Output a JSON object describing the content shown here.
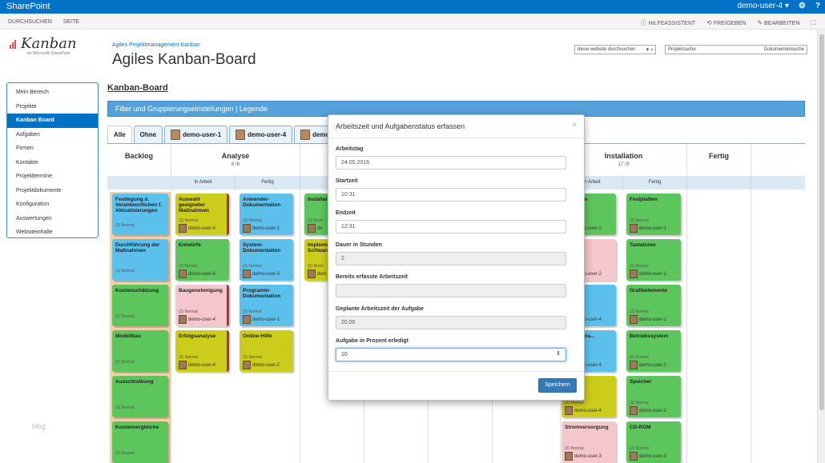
{
  "suitebar": {
    "brand": "SharePoint",
    "user": "demo-user-4 ▾",
    "gear": "⚙",
    "help": "?"
  },
  "ribbon": {
    "browse": "DURCHSUCHEN",
    "page": "SEITE",
    "help_assistant": "HILFEASSISTENT",
    "share": "FREIGEBEN",
    "edit": "BEARBEITEN"
  },
  "site": {
    "subtitle": "Agiles Projektmanagement Kanban",
    "title": "Agiles Kanban-Board",
    "logo_text": "Kanban",
    "logo_sub": "for Microsoft SharePoint"
  },
  "search": {
    "site_search": "diese website durchsuchen",
    "project_search": "Projektsuche",
    "doc_search": "Dokumentensuche"
  },
  "leftnav": {
    "items": [
      "Mein Bereich",
      "Projekte",
      "Kanban Board",
      "Aufgaben",
      "Firmen",
      "Kontakte",
      "Projekttermine",
      "Projektdokumente",
      "Konfiguration",
      "Auswertungen",
      "Websiteinhalte"
    ],
    "active": "Kanban Board"
  },
  "blog_watermark": "blog",
  "board": {
    "heading": "Kanban-Board",
    "filterbar": "Filter und Gruppierungseinstellungen | Legende",
    "tabs": [
      "Alle",
      "Ohne",
      "demo-user-1",
      "demo-user-4",
      "demo-user-"
    ],
    "columns": {
      "backlog": "Backlog",
      "analyse": {
        "title": "Analyse",
        "count": "8 /8",
        "sub": [
          "In Arbeit",
          "Fertig"
        ]
      },
      "entwicklung_sub": "In",
      "installation": {
        "title": "Installation",
        "count": "17 /3",
        "sub": [
          "In Arbeit",
          "Fertig"
        ]
      },
      "fertig": "Fertig"
    },
    "backlog_cards": [
      {
        "title": "Festlegung d. Verantwortlichen f. Aktualisierungen",
        "prio": "(2) Normal"
      },
      {
        "title": "Durchführung der Maßnahmen",
        "prio": "(2) Normal"
      },
      {
        "title": "Kostenschätzung",
        "prio": "(2) Normal"
      },
      {
        "title": "Modellbau",
        "prio": "(2) Normal"
      },
      {
        "title": "Ausschreibung",
        "prio": "(2) Normal"
      },
      {
        "title": "Kostenvergleiche",
        "prio": "(2) Normal"
      }
    ],
    "analyse_inwork_cards": [
      {
        "title": "Auswahl geeigneter Maßnahmen",
        "prio": "(2) Normal",
        "user": "demo-user-4"
      },
      {
        "title": "Entwürfe",
        "prio": "(2) Normal",
        "user": "demo-user-4"
      },
      {
        "title": "Baugenehmigung",
        "prio": "(2) Normal",
        "user": "demo-user-4"
      },
      {
        "title": "Erfolgsanalyse",
        "prio": "(2) Normal",
        "user": "demo-user-4"
      }
    ],
    "analyse_done_cards": [
      {
        "title": "Anwender-Dokumentation",
        "prio": "(2) Normal",
        "user": "demo-user-1"
      },
      {
        "title": "System-Dokumentation",
        "prio": "(2) Normal",
        "user": "demo-user-3"
      },
      {
        "title": "Programm-Dokumentation",
        "prio": "(2) Normal",
        "user": "demo-user-1"
      },
      {
        "title": "Online-Hilfe",
        "prio": "(2) Normal",
        "user": "demo-user-2"
      }
    ],
    "dev_cards": [
      {
        "title": "Installat",
        "prio": "(2) Norm",
        "user": "de"
      },
      {
        "title": "Impleme Software",
        "prio": "(2) Norm",
        "user": "dem"
      }
    ],
    "install_inwork_cards": [
      {
        "title": "...ten ...m",
        "prio": "(2) Normal",
        "user": "demo-user-2"
      },
      {
        "title": "...ebung",
        "prio": "(2) Normal",
        "user": "demo-user-2"
      },
      {
        "title": "...",
        "prio": "(2) Normal",
        "user": "demo-user-4"
      },
      {
        "title": "...erprogra...",
        "prio": "(2) Normal",
        "user": "demo-user-4"
      },
      {
        "title": "...l",
        "prio": "(2) Normal",
        "user": "demo-user-4"
      },
      {
        "title": "Stromversorgung",
        "prio": "(2) Normal",
        "user": "demo-user-3"
      }
    ],
    "install_done_cards": [
      {
        "title": "Festplatten",
        "prio": "(2) Normal",
        "user": "demo-user-1"
      },
      {
        "title": "Tastaturen",
        "prio": "(2) Normal",
        "user": "demo-user-1"
      },
      {
        "title": "Grafikelemente",
        "prio": "(2) Normal",
        "user": "demo-user-1"
      },
      {
        "title": "Betriebssystem",
        "prio": "(2) Normal",
        "user": "demo-user-1"
      },
      {
        "title": "Speicher",
        "prio": "(2) Normal",
        "user": "demo-user-2"
      },
      {
        "title": "CD-ROM",
        "prio": "(2) Normal",
        "user": "demo-user-3"
      }
    ]
  },
  "modal": {
    "title": "Arbeitszeit und Aufgabenstatus erfassen",
    "close": "×",
    "fields": [
      {
        "label": "Arbeitstag",
        "value": "24.05.2016"
      },
      {
        "label": "Startzeit",
        "value": "10:31"
      },
      {
        "label": "Endzeit",
        "value": "12:31"
      },
      {
        "label": "Dauer in Stunden",
        "value": "2"
      },
      {
        "label": "Bereits erfasste Arbeitszeit",
        "value": ""
      },
      {
        "label": "Geplante Arbeitszeit der Aufgabe",
        "value": "20,00"
      },
      {
        "label": "Aufgabe in Prozent erledigt",
        "value": "10"
      }
    ],
    "save": "Speichern"
  }
}
